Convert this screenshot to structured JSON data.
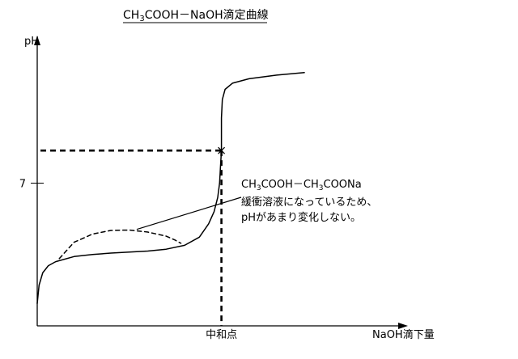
{
  "chart_data": {
    "type": "line",
    "title": {
      "main": "CH",
      "sub1": "3",
      "mid": "COOH－NaOH滴定曲線"
    },
    "ylabel": "pH",
    "xlabel": "NaOH滴下量",
    "xlim": [
      0,
      1.45
    ],
    "ylim": [
      0,
      14
    ],
    "y_ticks": [
      {
        "value": 7,
        "label": "7"
      }
    ],
    "x_ticks": [
      {
        "value": 1.0,
        "label": "中和点"
      }
    ],
    "equivalence_point": {
      "x": 1.0,
      "y": 8.6
    },
    "series": [
      {
        "style": "solid",
        "points": [
          [
            0.0,
            1.1
          ],
          [
            0.01,
            2.0
          ],
          [
            0.03,
            2.6
          ],
          [
            0.06,
            2.95
          ],
          [
            0.1,
            3.15
          ],
          [
            0.2,
            3.4
          ],
          [
            0.3,
            3.5
          ],
          [
            0.4,
            3.57
          ],
          [
            0.5,
            3.62
          ],
          [
            0.6,
            3.67
          ],
          [
            0.7,
            3.76
          ],
          [
            0.8,
            3.95
          ],
          [
            0.88,
            4.35
          ],
          [
            0.93,
            5.0
          ],
          [
            0.96,
            5.6
          ],
          [
            0.98,
            6.3
          ],
          [
            0.99,
            7.0
          ],
          [
            0.995,
            7.8
          ],
          [
            1.0,
            8.6
          ],
          [
            1.0,
            10.2
          ],
          [
            1.005,
            11.1
          ],
          [
            1.02,
            11.6
          ],
          [
            1.06,
            11.9
          ],
          [
            1.15,
            12.12
          ],
          [
            1.3,
            12.3
          ],
          [
            1.45,
            12.42
          ]
        ]
      },
      {
        "style": "dashed",
        "points": [
          [
            0.12,
            3.3
          ],
          [
            0.2,
            4.1
          ],
          [
            0.3,
            4.5
          ],
          [
            0.4,
            4.68
          ],
          [
            0.5,
            4.7
          ],
          [
            0.6,
            4.6
          ],
          [
            0.7,
            4.4
          ],
          [
            0.75,
            4.2
          ],
          [
            0.78,
            4.05
          ]
        ]
      }
    ],
    "annotation": {
      "line1_a": "CH",
      "line1_b": "3",
      "line1_c": "COOH－CH",
      "line1_d": "3",
      "line1_e": "COONa",
      "line2": "緩衝溶液になっているため、",
      "line3": "pHがあまり変化しない。",
      "pointer_from": [
        1.0,
        6.2
      ],
      "pointer_to": [
        0.54,
        4.73
      ]
    },
    "grid": false,
    "legend": "none"
  }
}
